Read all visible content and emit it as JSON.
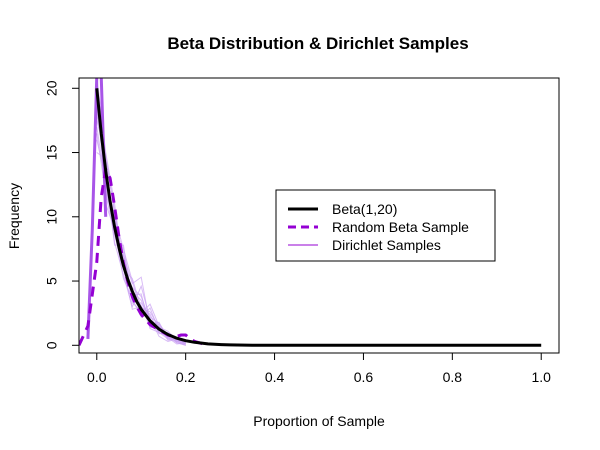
{
  "chart_data": {
    "type": "line",
    "title": "Beta Distribution & Dirichlet Samples",
    "xlabel": "Proportion of Sample",
    "ylabel": "Frequency",
    "xlim": [
      -0.04,
      1.04
    ],
    "ylim": [
      -0.6,
      20.8
    ],
    "x_ticks": [
      0.0,
      0.2,
      0.4,
      0.6,
      0.8,
      1.0
    ],
    "x_tick_labels": [
      "0.0",
      "0.2",
      "0.4",
      "0.6",
      "0.8",
      "1.0"
    ],
    "y_ticks": [
      0,
      5,
      10,
      15,
      20
    ],
    "y_tick_labels": [
      "0",
      "5",
      "10",
      "15",
      "20"
    ],
    "grid": false,
    "legend_position": "center-right",
    "legend": [
      {
        "label": "Beta(1,20)",
        "color": "#000000",
        "style": "solid",
        "width": "thick"
      },
      {
        "label": "Random Beta Sample",
        "color": "#9400D3",
        "style": "dashed",
        "width": "thick"
      },
      {
        "label": "Dirichlet Samples",
        "color": "#9400D3",
        "style": "solid",
        "width": "thin"
      }
    ],
    "series": [
      {
        "name": "Beta(1,20)",
        "color": "#000000",
        "style": "solid",
        "x": [
          0.0,
          0.01,
          0.02,
          0.03,
          0.04,
          0.05,
          0.06,
          0.07,
          0.08,
          0.09,
          0.1,
          0.12,
          0.14,
          0.16,
          0.18,
          0.2,
          0.22,
          0.25,
          0.28,
          0.3,
          0.35,
          0.4,
          0.5,
          0.6,
          0.7,
          0.8,
          0.9,
          1.0
        ],
        "y": [
          20.0,
          16.5,
          13.6,
          11.2,
          9.2,
          7.6,
          6.2,
          5.1,
          4.2,
          3.4,
          2.8,
          1.9,
          1.26,
          0.84,
          0.55,
          0.36,
          0.23,
          0.11,
          0.05,
          0.03,
          0.01,
          0.0,
          0.0,
          0.0,
          0.0,
          0.0,
          0.0,
          0.0
        ]
      },
      {
        "name": "Random Beta Sample",
        "color": "#9400D3",
        "style": "dashed",
        "x": [
          -0.04,
          -0.02,
          0.0,
          0.01,
          0.02,
          0.03,
          0.04,
          0.05,
          0.06,
          0.07,
          0.08,
          0.09,
          0.1,
          0.11,
          0.12,
          0.13,
          0.14,
          0.15,
          0.16,
          0.17,
          0.18,
          0.19,
          0.2,
          0.21,
          0.22,
          0.23,
          0.24,
          0.25
        ],
        "y": [
          0.0,
          1.5,
          6.5,
          11.5,
          13.7,
          13.0,
          10.8,
          8.4,
          6.4,
          4.9,
          3.8,
          3.0,
          2.4,
          2.0,
          1.6,
          1.4,
          1.2,
          1.0,
          0.8,
          0.7,
          0.7,
          0.8,
          0.8,
          0.5,
          0.3,
          0.2,
          0.1,
          0.0
        ]
      },
      {
        "name": "Dirichlet Samples",
        "color": "#9400D3",
        "style": "solid",
        "x": [
          -0.02,
          -0.01,
          0.0,
          0.01,
          0.02
        ],
        "y": [
          0.5,
          9.0,
          21.0,
          21.0,
          10.0
        ]
      }
    ],
    "dirichlet_samples_faint": [
      {
        "x": [
          0.0,
          0.02,
          0.04,
          0.06,
          0.08,
          0.1,
          0.12,
          0.14,
          0.16,
          0.18,
          0.2
        ],
        "y": [
          19.0,
          12.0,
          9.5,
          6.8,
          4.2,
          3.5,
          1.8,
          1.2,
          0.6,
          0.3,
          0.1
        ]
      },
      {
        "x": [
          0.0,
          0.02,
          0.04,
          0.06,
          0.08,
          0.1,
          0.12,
          0.14,
          0.16,
          0.18,
          0.2
        ],
        "y": [
          18.0,
          14.0,
          8.0,
          5.5,
          3.0,
          4.6,
          2.0,
          1.0,
          0.7,
          0.2,
          0.0
        ]
      },
      {
        "x": [
          0.0,
          0.02,
          0.04,
          0.06,
          0.08,
          0.1,
          0.12,
          0.14,
          0.16,
          0.18,
          0.2
        ],
        "y": [
          16.0,
          13.0,
          10.0,
          7.5,
          5.0,
          2.5,
          3.2,
          1.5,
          0.4,
          0.5,
          0.1
        ]
      },
      {
        "x": [
          0.0,
          0.02,
          0.04,
          0.06,
          0.08,
          0.1,
          0.12,
          0.14,
          0.16,
          0.18,
          0.2
        ],
        "y": [
          21.0,
          15.0,
          11.0,
          6.0,
          2.8,
          3.0,
          2.4,
          0.9,
          1.0,
          0.3,
          0.0
        ]
      },
      {
        "x": [
          0.0,
          0.02,
          0.04,
          0.06,
          0.08,
          0.1,
          0.12,
          0.14,
          0.16,
          0.18,
          0.2
        ],
        "y": [
          17.0,
          12.5,
          8.8,
          7.0,
          4.8,
          5.3,
          1.6,
          1.8,
          0.5,
          0.4,
          0.2
        ]
      },
      {
        "x": [
          0.0,
          0.02,
          0.04,
          0.06,
          0.08,
          0.1,
          0.12,
          0.14,
          0.16,
          0.18,
          0.2
        ],
        "y": [
          20.0,
          11.0,
          9.0,
          5.2,
          3.6,
          2.2,
          2.9,
          1.1,
          0.8,
          0.6,
          0.1
        ]
      },
      {
        "x": [
          0.0,
          0.02,
          0.04,
          0.06,
          0.08,
          0.1,
          0.12,
          0.14,
          0.16,
          0.18,
          0.2
        ],
        "y": [
          15.0,
          14.5,
          10.5,
          6.4,
          4.0,
          3.1,
          1.4,
          1.3,
          0.9,
          0.2,
          0.0
        ]
      },
      {
        "x": [
          0.0,
          0.02,
          0.04,
          0.06,
          0.08,
          0.1,
          0.12,
          0.14,
          0.16,
          0.18,
          0.2
        ],
        "y": [
          18.5,
          13.5,
          7.8,
          7.8,
          3.3,
          2.7,
          2.1,
          0.7,
          0.3,
          0.5,
          0.1
        ]
      },
      {
        "x": [
          0.0,
          0.02,
          0.04,
          0.06,
          0.08,
          0.1,
          0.12,
          0.14,
          0.16,
          0.18,
          0.2
        ],
        "y": [
          19.5,
          12.8,
          9.9,
          6.1,
          4.5,
          3.8,
          1.9,
          1.6,
          0.6,
          0.1,
          0.2
        ]
      },
      {
        "x": [
          0.0,
          0.02,
          0.04,
          0.06,
          0.08,
          0.1,
          0.12,
          0.14,
          0.16,
          0.18,
          0.2
        ],
        "y": [
          16.5,
          11.8,
          8.6,
          5.9,
          5.2,
          2.9,
          2.6,
          1.4,
          1.1,
          0.4,
          0.0
        ]
      },
      {
        "x": [
          0.0,
          0.02,
          0.04,
          0.06,
          0.08,
          0.1,
          0.12,
          0.14,
          0.16,
          0.18,
          0.2
        ],
        "y": [
          20.5,
          13.2,
          9.2,
          7.2,
          3.9,
          4.0,
          1.3,
          1.0,
          0.5,
          0.6,
          0.1
        ]
      },
      {
        "x": [
          0.0,
          0.02,
          0.04,
          0.06,
          0.08,
          0.1,
          0.12,
          0.14,
          0.16,
          0.18,
          0.2
        ],
        "y": [
          17.5,
          14.8,
          10.2,
          6.6,
          3.4,
          3.3,
          2.2,
          1.7,
          0.7,
          0.3,
          0.2
        ]
      }
    ]
  }
}
